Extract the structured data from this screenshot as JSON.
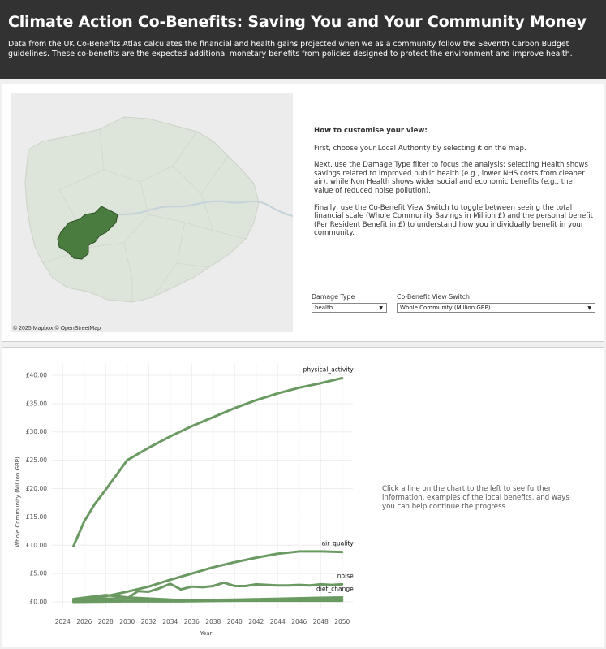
{
  "header": {
    "title": "Climate Action Co-Benefits: Saving You and Your Community Money",
    "description": "Data from the UK Co-Benefits Atlas calculates the financial and health gains projected when we as a community follow the Seventh Carbon Budget guidelines. These co-benefits are the expected additional monetary benefits from policies designed to protect the environment and improve health."
  },
  "map": {
    "attribution": "© 2025 Mapbox  © OpenStreetMap",
    "selected_color": "#4a7c3f",
    "region_color": "#d6e0d2"
  },
  "instructions": {
    "title": "How to customise your view:",
    "p1": "First, choose your Local Authority by selecting it on the map.",
    "p2": "Next, use the Damage Type filter to focus the analysis: selecting Health shows savings related to improved public health (e.g., lower NHS costs from cleaner air), while Non Health shows wider social and economic benefits (e.g., the value of reduced noise pollution).",
    "p3": "Finally, use the Co-Benefit View Switch to toggle between seeing the total financial scale (Whole Community Savings in Million £) and the personal benefit (Per Resident Benefit in £) to understand how you individually benefit in your community."
  },
  "filters": {
    "damage_type_label": "Damage Type",
    "damage_type_value": "health",
    "view_switch_label": "Co-Benefit View Switch",
    "view_switch_value": "Whole Community (Million GBP)"
  },
  "side_note": "Click a line on the chart to the left to see further information, examples of the local benefits, and ways you can help continue the progress.",
  "chart_data": {
    "type": "line",
    "xlabel": "Year",
    "ylabel": "Whole Community (Million GBP)",
    "xlim": [
      2023,
      2051
    ],
    "ylim": [
      -1,
      42
    ],
    "xticks": [
      2024,
      2026,
      2028,
      2030,
      2032,
      2034,
      2036,
      2038,
      2040,
      2042,
      2044,
      2046,
      2048,
      2050
    ],
    "yticks": [
      0,
      5,
      10,
      15,
      20,
      25,
      30,
      35,
      40
    ],
    "ytick_labels": [
      "£0.00",
      "£5.00",
      "£10.00",
      "£15.00",
      "£20.00",
      "£25.00",
      "£30.00",
      "£35.00",
      "£40.00"
    ],
    "line_color": "#6a9a62",
    "series": [
      {
        "name": "physical_activity",
        "x": [
          2025,
          2026,
          2027,
          2028,
          2030,
          2032,
          2034,
          2036,
          2038,
          2040,
          2042,
          2044,
          2046,
          2048,
          2050
        ],
        "values": [
          9.8,
          14.2,
          17.3,
          19.8,
          25.0,
          27.2,
          29.2,
          31.0,
          32.6,
          34.2,
          35.6,
          36.8,
          37.8,
          38.6,
          39.5
        ]
      },
      {
        "name": "air_quality",
        "x": [
          2025,
          2028,
          2030,
          2032,
          2034,
          2036,
          2038,
          2040,
          2042,
          2044,
          2046,
          2048,
          2050
        ],
        "values": [
          0.4,
          1.0,
          1.8,
          2.7,
          3.9,
          5.0,
          6.1,
          7.0,
          7.8,
          8.5,
          8.9,
          8.9,
          8.8
        ]
      },
      {
        "name": "noise",
        "x": [
          2025,
          2027,
          2029,
          2030,
          2031,
          2032,
          2033,
          2034,
          2035,
          2036,
          2037,
          2038,
          2039,
          2040,
          2041,
          2042,
          2043,
          2044,
          2045,
          2046,
          2047,
          2048,
          2049,
          2050
        ],
        "values": [
          0.2,
          0.5,
          0.6,
          0.6,
          1.9,
          1.8,
          2.4,
          3.2,
          2.2,
          2.7,
          2.6,
          2.8,
          3.4,
          2.8,
          2.8,
          3.1,
          3.0,
          2.9,
          2.9,
          3.0,
          2.9,
          3.1,
          3.0,
          3.1
        ]
      },
      {
        "name": "diet_change",
        "x": [
          2025,
          2030,
          2035,
          2040,
          2045,
          2050
        ],
        "values": [
          0.1,
          0.2,
          0.3,
          0.4,
          0.6,
          0.8
        ]
      },
      {
        "name": "",
        "x": [
          2025,
          2028,
          2030,
          2035,
          2040,
          2045,
          2050
        ],
        "values": [
          0.5,
          1.2,
          0.8,
          0.3,
          0.2,
          0.2,
          0.2
        ]
      },
      {
        "name": "",
        "x": [
          2025,
          2030,
          2035,
          2040,
          2045,
          2050
        ],
        "values": [
          0.0,
          0.1,
          0.1,
          0.2,
          0.3,
          0.4
        ]
      }
    ]
  }
}
